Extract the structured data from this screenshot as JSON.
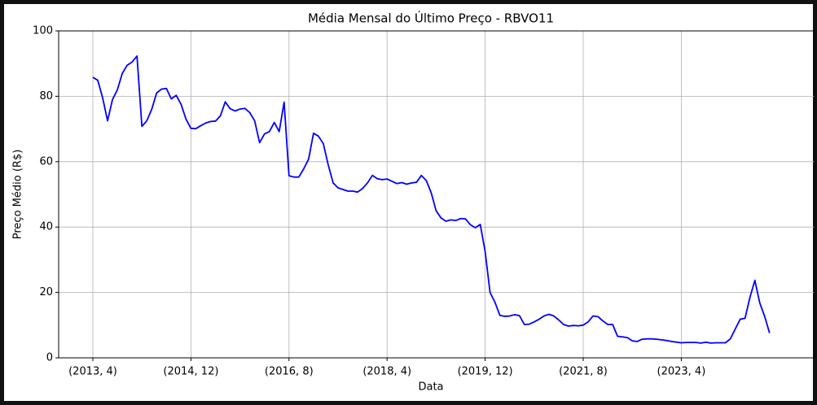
{
  "chart_data": {
    "type": "line",
    "title": "Média Mensal do Último Preço - RBVO11",
    "xlabel": "Data",
    "ylabel": "Preço Médio (R$)",
    "categories": [
      "(2013, 4)",
      null,
      null,
      null,
      null,
      null,
      null,
      null,
      null,
      null,
      null,
      null,
      null,
      null,
      null,
      null,
      null,
      null,
      null,
      null,
      "(2014, 12)",
      null,
      null,
      null,
      null,
      null,
      null,
      null,
      null,
      null,
      null,
      null,
      null,
      null,
      null,
      null,
      null,
      null,
      null,
      null,
      "(2016, 8)",
      null,
      null,
      null,
      null,
      null,
      null,
      null,
      null,
      null,
      null,
      null,
      null,
      null,
      null,
      null,
      null,
      null,
      null,
      null,
      "(2018, 4)",
      null,
      null,
      null,
      null,
      null,
      null,
      null,
      null,
      null,
      null,
      null,
      null,
      null,
      null,
      null,
      null,
      null,
      null,
      null,
      "(2019, 12)",
      null,
      null,
      null,
      null,
      null,
      null,
      null,
      null,
      null,
      null,
      null,
      null,
      null,
      null,
      null,
      null,
      null,
      null,
      null,
      "(2021, 8)",
      null,
      null,
      null,
      null,
      null,
      null,
      null,
      null,
      null,
      null,
      null,
      null,
      null,
      null,
      null,
      null,
      null,
      null,
      null,
      "(2023, 4)",
      null,
      null,
      null,
      null,
      null,
      null,
      null,
      null,
      null,
      null,
      null,
      null,
      null,
      null,
      null,
      null,
      null,
      null
    ],
    "series": [
      {
        "color": "#0000ff",
        "values": [
          85.8,
          84.9,
          79.5,
          72.5,
          79,
          82,
          87,
          89.5,
          90.5,
          92.3,
          70.8,
          72.5,
          76,
          81,
          82.2,
          82.4,
          79.2,
          80.3,
          77.5,
          73,
          70.2,
          70.1,
          71,
          71.8,
          72.3,
          72.4,
          74,
          78.3,
          76.2,
          75.5,
          76.1,
          76.3,
          75,
          72.5,
          65.8,
          68.5,
          69.2,
          72,
          69.2,
          78.2,
          55.7,
          55.3,
          55.3,
          57.8,
          60.8,
          68.7,
          67.8,
          65.5,
          59,
          53.5,
          52,
          51.5,
          51,
          51,
          50.7,
          51.8,
          53.5,
          55.8,
          54.8,
          54.5,
          54.7,
          54,
          53.3,
          53.6,
          53.1,
          53.5,
          53.7,
          55.8,
          54.2,
          50.5,
          45,
          42.8,
          41.8,
          42.2,
          42,
          42.6,
          42.5,
          40.7,
          39.8,
          40.8,
          32.5,
          20,
          17,
          13,
          12.7,
          12.8,
          13.2,
          12.9,
          10.2,
          10.3,
          11,
          11.8,
          12.8,
          13.3,
          12.8,
          11.6,
          10.2,
          9.7,
          9.9,
          9.8,
          10,
          11,
          12.8,
          12.6,
          11.3,
          10.2,
          10.2,
          6.6,
          6.4,
          6.2,
          5.2,
          5,
          5.7,
          5.8,
          5.8,
          5.7,
          5.5,
          5.3,
          5,
          4.8,
          4.6,
          4.7,
          4.7,
          4.7,
          4.5,
          4.8,
          4.5,
          4.6,
          4.6,
          4.6,
          5.8,
          8.8,
          11.8,
          12.1,
          18.5,
          23.7,
          16.8,
          12.7,
          7.6
        ]
      }
    ],
    "ylim": [
      0,
      100
    ],
    "yticks": [
      0,
      20,
      40,
      60,
      80,
      100
    ],
    "grid": true
  }
}
